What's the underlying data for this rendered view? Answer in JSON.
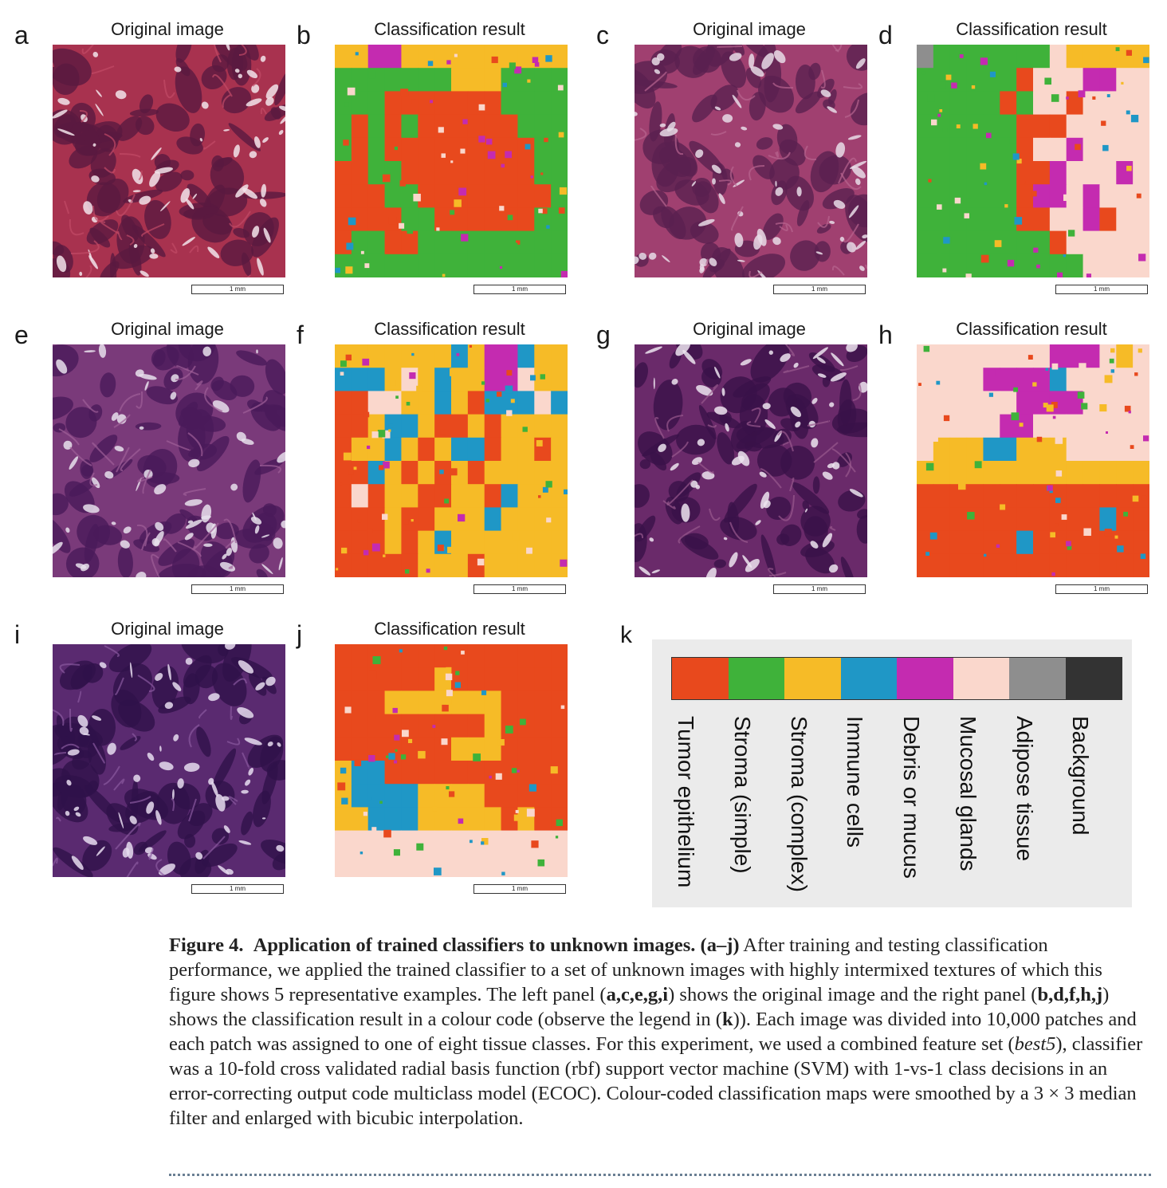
{
  "panels": [
    {
      "letter": "a",
      "title": "Original image",
      "scale": "1 mm",
      "kind": "histo",
      "palette": [
        "#a8324f",
        "#5a1940",
        "#c24a66",
        "#f2e4ea"
      ]
    },
    {
      "letter": "b",
      "title": "Classification result",
      "scale": "1 mm",
      "kind": "class"
    },
    {
      "letter": "c",
      "title": "Original image",
      "scale": "1 mm",
      "kind": "histo",
      "palette": [
        "#a04070",
        "#5a2050",
        "#b86590",
        "#e8dce6"
      ]
    },
    {
      "letter": "d",
      "title": "Classification result",
      "scale": "1 mm",
      "kind": "class"
    },
    {
      "letter": "e",
      "title": "Original image",
      "scale": "1 mm",
      "kind": "histo",
      "palette": [
        "#7a3a7a",
        "#4a1a5a",
        "#a06098",
        "#e8e0ec"
      ]
    },
    {
      "letter": "f",
      "title": "Classification result",
      "scale": "1 mm",
      "kind": "class"
    },
    {
      "letter": "g",
      "title": "Original image",
      "scale": "1 mm",
      "kind": "histo",
      "palette": [
        "#6a2a6a",
        "#3a1248",
        "#9a5a8e",
        "#ece4ee"
      ]
    },
    {
      "letter": "h",
      "title": "Classification result",
      "scale": "1 mm",
      "kind": "class"
    },
    {
      "letter": "i",
      "title": "Original image",
      "scale": "1 mm",
      "kind": "histo",
      "palette": [
        "#5a2a70",
        "#30124a",
        "#8a5aa0",
        "#e6dcee"
      ]
    },
    {
      "letter": "j",
      "title": "Classification result",
      "scale": "1 mm",
      "kind": "class"
    }
  ],
  "legend": {
    "letter": "k",
    "items": [
      {
        "label": "Tumor epithelium",
        "color": "#e8491d"
      },
      {
        "label": "Stroma (simple)",
        "color": "#3fb23a"
      },
      {
        "label": "Stroma (complex)",
        "color": "#f6bb27"
      },
      {
        "label": "Immune cells",
        "color": "#1f97c6"
      },
      {
        "label": "Debris or mucus",
        "color": "#c42bb0"
      },
      {
        "label": "Mucosal glands",
        "color": "#fad7cc"
      },
      {
        "label": "Adipose tissue",
        "color": "#8e8e8e"
      },
      {
        "label": "Background",
        "color": "#333333"
      }
    ]
  },
  "caption": {
    "fig": "Figure 4.",
    "title": "Application of trained classifiers to unknown images.",
    "range": "(a–j)",
    "text1": "After training and testing classification performance, we applied the trained classifier to a set of unknown images with highly intermixed textures of which this figure shows 5 representative examples. The left panel (",
    "left_refs": "a,c,e,g,i",
    "text2": ") shows the original image and the right panel (",
    "right_refs": "b,d,f,h,j",
    "text3": ") shows the classification result in a colour code (observe the legend in (",
    "legend_ref": "k",
    "text4": ")). Each image was divided into 10,000 patches and each patch was assigned to one of eight tissue classes. For this experiment, we used a combined feature set (",
    "feature_set": "best5",
    "text5": "), classifier was a 10-fold cross validated radial basis function (rbf) support vector machine (SVM) with 1-vs-1 class decisions in an error-correcting output code multiclass model (ECOC). Colour-coded classification maps were smoothed by a 3 × 3 median filter and enlarged with bicubic interpolation."
  }
}
